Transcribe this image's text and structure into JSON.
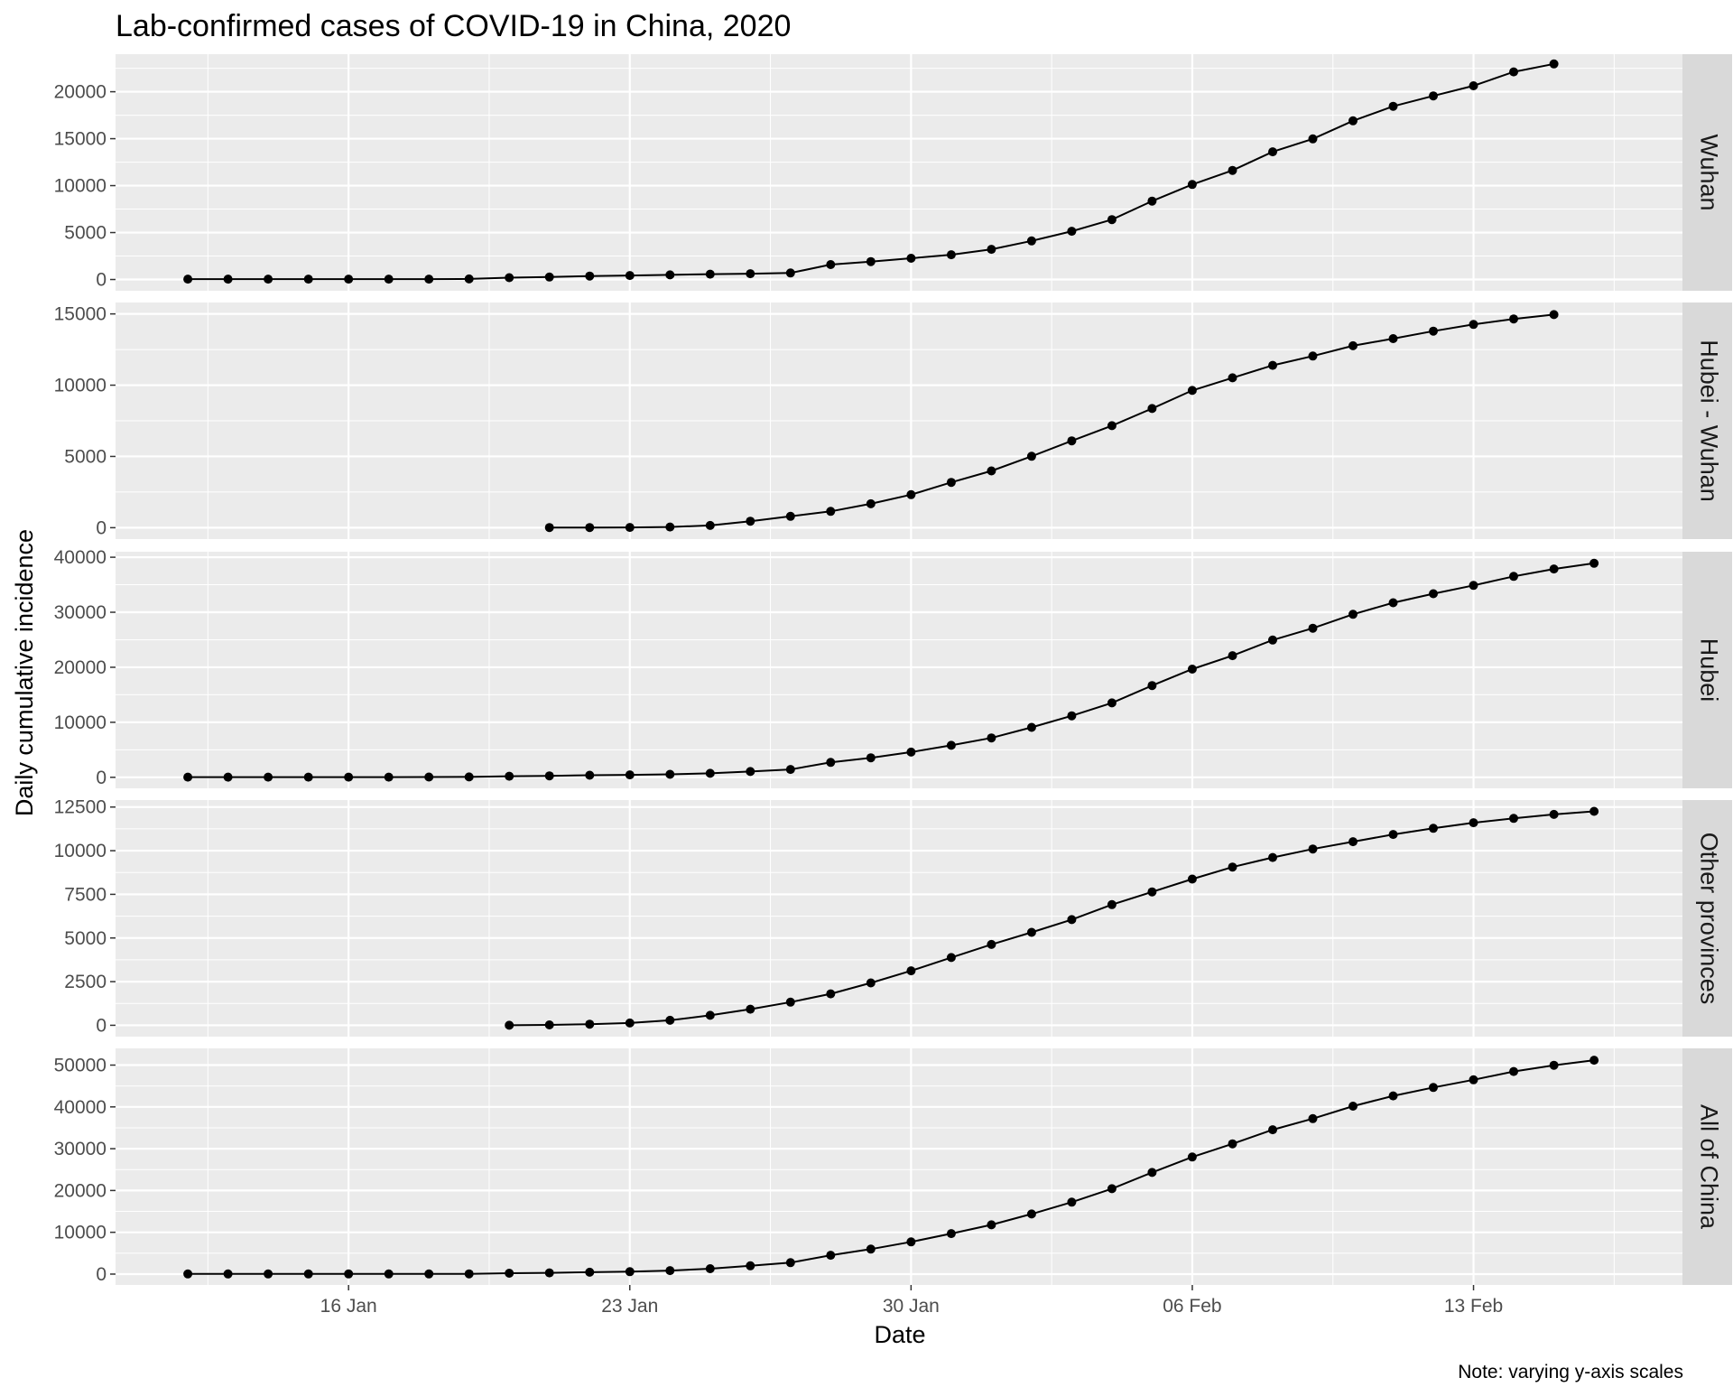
{
  "chart_data": {
    "type": "line",
    "title": "Lab-confirmed cases of COVID-19 in China, 2020",
    "xlabel": "Date",
    "ylabel": "Daily cumulative incidence",
    "caption": "Note: varying y-axis scales",
    "x_start": "2020-01-12",
    "x_tick_labels": [
      {
        "day_index": 4,
        "label": "16 Jan"
      },
      {
        "day_index": 11,
        "label": "23 Jan"
      },
      {
        "day_index": 18,
        "label": "30 Jan"
      },
      {
        "day_index": 25,
        "label": "06 Feb"
      },
      {
        "day_index": 32,
        "label": "13 Feb"
      }
    ],
    "xlim": [
      -1.8,
      37.2
    ],
    "panels": [
      {
        "strip": "Wuhan",
        "ylim": [
          -1200,
          24000
        ],
        "yticks": [
          0,
          5000,
          10000,
          15000,
          20000
        ],
        "start_index": 0,
        "values": [
          41,
          41,
          41,
          41,
          41,
          41,
          45,
          62,
          198,
          258,
          363,
          425,
          495,
          572,
          618,
          698,
          1590,
          1905,
          2261,
          2639,
          3215,
          4109,
          5142,
          6384,
          8351,
          10117,
          11618,
          13603,
          14982,
          16902,
          18454,
          19558,
          20630,
          22112,
          22960
        ]
      },
      {
        "strip": "Hubei - Wuhan",
        "ylim": [
          -800,
          15800
        ],
        "yticks": [
          0,
          5000,
          10000,
          15000
        ],
        "start_index": 9,
        "values": [
          12,
          12,
          20,
          52,
          157,
          452,
          796,
          1146,
          1675,
          2318,
          3179,
          3986,
          5008,
          6092,
          7155,
          8359,
          9632,
          10516,
          11390,
          12042,
          12767,
          13263,
          13790,
          14261,
          14648,
          14948
        ]
      },
      {
        "strip": "Hubei",
        "ylim": [
          -2000,
          41000
        ],
        "yticks": [
          0,
          10000,
          20000,
          30000,
          40000
        ],
        "start_index": 0,
        "values": [
          41,
          41,
          41,
          41,
          41,
          41,
          45,
          62,
          198,
          270,
          375,
          444,
          549,
          729,
          1052,
          1423,
          2714,
          3554,
          4586,
          5806,
          7153,
          9074,
          11177,
          13522,
          16678,
          19665,
          22112,
          24953,
          27100,
          29631,
          31728,
          33366,
          34874,
          36524,
          37860,
          38900
        ]
      },
      {
        "strip": "Other provinces",
        "ylim": [
          -650,
          12900
        ],
        "yticks": [
          0,
          2500,
          5000,
          7500,
          10000,
          12500
        ],
        "start_index": 8,
        "values": [
          0,
          21,
          65,
          131,
          285,
          571,
          923,
          1324,
          1803,
          2425,
          3119,
          3880,
          4631,
          5324,
          6054,
          6913,
          7639,
          8373,
          9063,
          9613,
          10098,
          10516,
          10928,
          11279,
          11600,
          11848,
          12078,
          12254
        ]
      },
      {
        "strip": "All of China",
        "ylim": [
          -2600,
          54000
        ],
        "yticks": [
          0,
          10000,
          20000,
          30000,
          40000,
          50000
        ],
        "start_index": 0,
        "values": [
          41,
          41,
          41,
          41,
          41,
          41,
          45,
          62,
          198,
          291,
          440,
          571,
          830,
          1287,
          1975,
          2744,
          4515,
          5974,
          7711,
          9692,
          11791,
          14380,
          17205,
          20438,
          24324,
          28018,
          31161,
          34546,
          37198,
          40171,
          42638,
          44653,
          46472,
          48467,
          49970,
          51174
        ]
      }
    ],
    "colors": {
      "panel_bg": "#ebebeb",
      "grid": "#ffffff",
      "strip_bg": "#d9d9d9",
      "line": "#000000",
      "point": "#000000"
    }
  }
}
